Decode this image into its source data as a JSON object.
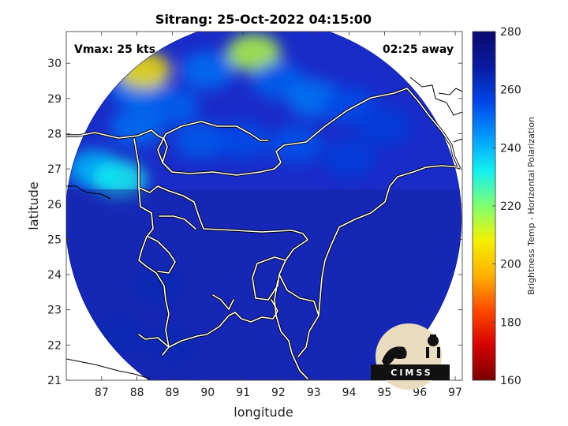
{
  "title": "Sitrang: 25-Oct-2022 04:15:00",
  "annotations": {
    "vmax": "Vmax: 25 kts",
    "time_away": "02:25 away"
  },
  "axes": {
    "xlabel": "longitude",
    "ylabel": "latitude",
    "xlim": [
      86,
      97.2
    ],
    "ylim": [
      21,
      30.9
    ],
    "xticks": [
      "87",
      "88",
      "89",
      "90",
      "91",
      "92",
      "93",
      "94",
      "95",
      "96",
      "97"
    ],
    "yticks": [
      "21",
      "22",
      "23",
      "24",
      "25",
      "26",
      "27",
      "28",
      "29",
      "30"
    ]
  },
  "colorbar": {
    "label": "Brightness Temp - Horizontal Polarization",
    "ticks": [
      "160",
      "180",
      "200",
      "220",
      "240",
      "260",
      "280"
    ],
    "range": [
      160,
      280
    ],
    "colors": [
      "#7a0000",
      "#d40000",
      "#ff4a00",
      "#ffb000",
      "#f5f000",
      "#80ff70",
      "#14f0f0",
      "#0099ff",
      "#0044e6",
      "#0a1aa0",
      "#0a0a6e"
    ]
  },
  "logo": {
    "text": "CIMSS"
  },
  "map_data": {
    "type": "microwave-brightness-temperature",
    "swath_center": [
      92.2,
      25.7
    ],
    "swath_radius_deg": 5.6,
    "background_color": "#1a2cc8",
    "cells": [
      {
        "lon": 88.0,
        "lat": 29.3,
        "tb": 248
      },
      {
        "lon": 89.0,
        "lat": 28.8,
        "tb": 252
      },
      {
        "lon": 90.0,
        "lat": 29.8,
        "tb": 250
      },
      {
        "lon": 91.3,
        "lat": 30.3,
        "tb": 215
      },
      {
        "lon": 92.0,
        "lat": 29.5,
        "tb": 252
      },
      {
        "lon": 93.0,
        "lat": 29.0,
        "tb": 249
      },
      {
        "lon": 94.0,
        "lat": 28.8,
        "tb": 255
      },
      {
        "lon": 95.0,
        "lat": 28.2,
        "tb": 258
      },
      {
        "lon": 86.8,
        "lat": 27.0,
        "tb": 240
      },
      {
        "lon": 87.5,
        "lat": 26.7,
        "tb": 232
      },
      {
        "lon": 88.0,
        "lat": 28.2,
        "tb": 250
      },
      {
        "lon": 89.8,
        "lat": 27.8,
        "tb": 253
      },
      {
        "lon": 91.0,
        "lat": 27.8,
        "tb": 255
      },
      {
        "lon": 92.5,
        "lat": 27.7,
        "tb": 254
      },
      {
        "lon": 94.0,
        "lat": 27.3,
        "tb": 258
      },
      {
        "lon": 88.2,
        "lat": 29.8,
        "tb": 205
      },
      {
        "lon": 89.0,
        "lat": 22.0,
        "tb": 262
      },
      {
        "lon": 88.6,
        "lat": 23.7,
        "tb": 262
      },
      {
        "lon": 87.5,
        "lat": 22.3,
        "tb": 262
      }
    ]
  }
}
